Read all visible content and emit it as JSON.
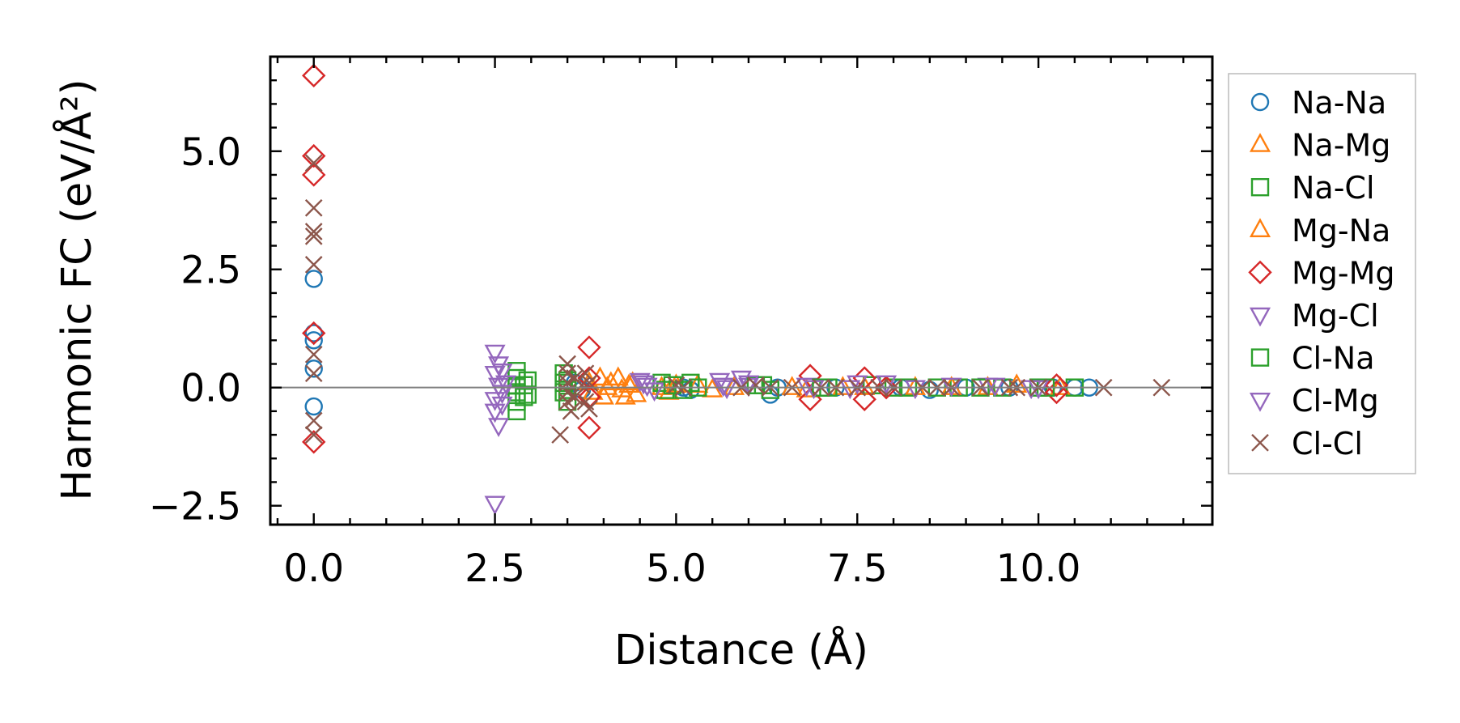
{
  "chart_data": {
    "type": "scatter",
    "title": "",
    "xlabel": "Distance (Å)",
    "ylabel": "Harmonic FC (eV/Å²)",
    "xlim": [
      -0.6,
      12.4
    ],
    "ylim": [
      -2.9,
      7.0
    ],
    "xticks": [
      0.0,
      2.5,
      5.0,
      7.5,
      10.0
    ],
    "xtick_labels": [
      "0.0",
      "2.5",
      "5.0",
      "7.5",
      "10.0"
    ],
    "yticks": [
      -2.5,
      0.0,
      2.5,
      5.0
    ],
    "ytick_labels": [
      "−2.5",
      "0.0",
      "2.5",
      "5.0"
    ],
    "zero_line": 0,
    "legend_position": "right",
    "series": [
      {
        "name": "Na-Na",
        "marker": "circle",
        "color": "#1f77b4",
        "points": [
          [
            0,
            2.3
          ],
          [
            0,
            1.15
          ],
          [
            0,
            1.0
          ],
          [
            0,
            0.4
          ],
          [
            0,
            -0.4
          ],
          [
            3.6,
            0.1
          ],
          [
            3.7,
            -0.05
          ],
          [
            5.1,
            0.0
          ],
          [
            5.2,
            -0.05
          ],
          [
            6.3,
            -0.15
          ],
          [
            6.4,
            0.0
          ],
          [
            7.2,
            0.0
          ],
          [
            8.1,
            0.0
          ],
          [
            8.5,
            -0.05
          ],
          [
            9.0,
            0.0
          ],
          [
            9.6,
            0.0
          ],
          [
            10.2,
            0.0
          ],
          [
            10.5,
            0.0
          ],
          [
            10.7,
            0.0
          ]
        ]
      },
      {
        "name": "Na-Mg",
        "marker": "triangle-up",
        "color": "#ff7f0e",
        "points": [
          [
            3.8,
            0.1
          ],
          [
            3.95,
            0.2
          ],
          [
            4.0,
            -0.2
          ],
          [
            4.1,
            0.1
          ],
          [
            4.2,
            0.2
          ],
          [
            4.3,
            -0.2
          ],
          [
            4.35,
            0.05
          ],
          [
            4.45,
            -0.15
          ],
          [
            4.8,
            0.0
          ],
          [
            4.9,
            -0.1
          ],
          [
            5.3,
            0.05
          ],
          [
            5.5,
            -0.05
          ],
          [
            6.6,
            0.0
          ],
          [
            7.3,
            0.0
          ],
          [
            8.3,
            0.0
          ],
          [
            9.3,
            0.0
          ],
          [
            10.3,
            0.0
          ]
        ]
      },
      {
        "name": "Na-Cl",
        "marker": "square",
        "color": "#2ca02c",
        "points": [
          [
            2.8,
            0.35
          ],
          [
            2.8,
            0.2
          ],
          [
            2.8,
            0.05
          ],
          [
            2.8,
            -0.1
          ],
          [
            2.8,
            -0.3
          ],
          [
            2.8,
            -0.5
          ],
          [
            2.95,
            0.15
          ],
          [
            2.95,
            -0.15
          ],
          [
            3.45,
            0.3
          ],
          [
            3.45,
            0.1
          ],
          [
            3.45,
            -0.1
          ],
          [
            3.5,
            -0.3
          ],
          [
            4.8,
            0.1
          ],
          [
            4.85,
            -0.05
          ],
          [
            5.2,
            0.1
          ],
          [
            5.3,
            0.0
          ],
          [
            6.2,
            0.05
          ],
          [
            6.3,
            -0.05
          ],
          [
            7.1,
            0.0
          ],
          [
            7.7,
            0.05
          ],
          [
            8.0,
            0.0
          ],
          [
            8.6,
            0.0
          ],
          [
            8.9,
            0.0
          ],
          [
            9.5,
            0.0
          ],
          [
            10.0,
            0.0
          ],
          [
            10.5,
            0.0
          ]
        ]
      },
      {
        "name": "Mg-Na",
        "marker": "triangle-up",
        "color": "#ff7f0e",
        "points": [
          [
            3.85,
            -0.1
          ],
          [
            4.05,
            0.0
          ],
          [
            4.25,
            -0.05
          ],
          [
            4.4,
            0.1
          ],
          [
            5.0,
            0.05
          ],
          [
            5.8,
            0.0
          ],
          [
            6.8,
            -0.05
          ],
          [
            7.6,
            0.0
          ],
          [
            8.8,
            0.0
          ],
          [
            9.7,
            0.05
          ]
        ]
      },
      {
        "name": "Mg-Mg",
        "marker": "diamond",
        "color": "#d62728",
        "points": [
          [
            0,
            6.6
          ],
          [
            0,
            4.9
          ],
          [
            0,
            4.5
          ],
          [
            0,
            1.15
          ],
          [
            0,
            -1.15
          ],
          [
            3.8,
            0.85
          ],
          [
            3.8,
            0.2
          ],
          [
            3.8,
            -0.2
          ],
          [
            3.8,
            -0.85
          ],
          [
            6.85,
            0.25
          ],
          [
            6.85,
            -0.25
          ],
          [
            7.6,
            0.2
          ],
          [
            7.6,
            -0.25
          ],
          [
            7.9,
            0.0
          ],
          [
            10.25,
            0.05
          ],
          [
            10.25,
            -0.1
          ]
        ]
      },
      {
        "name": "Mg-Cl",
        "marker": "triangle-down",
        "color": "#9467bd",
        "points": [
          [
            2.5,
            0.75
          ],
          [
            2.55,
            0.5
          ],
          [
            2.5,
            0.3
          ],
          [
            2.55,
            0.05
          ],
          [
            2.5,
            -0.25
          ],
          [
            2.5,
            -0.5
          ],
          [
            2.55,
            -0.8
          ],
          [
            2.5,
            -2.45
          ],
          [
            4.5,
            0.15
          ],
          [
            4.6,
            0.05
          ],
          [
            4.7,
            -0.05
          ],
          [
            5.6,
            0.15
          ],
          [
            5.7,
            0.0
          ],
          [
            5.9,
            0.2
          ],
          [
            6.0,
            0.05
          ],
          [
            6.8,
            0.05
          ],
          [
            7.4,
            0.0
          ],
          [
            7.9,
            0.1
          ],
          [
            8.8,
            0.05
          ],
          [
            9.3,
            0.05
          ],
          [
            9.9,
            0.0
          ]
        ]
      },
      {
        "name": "Cl-Na",
        "marker": "square",
        "color": "#2ca02c",
        "points": [
          [
            2.9,
            0.05
          ],
          [
            2.9,
            -0.2
          ],
          [
            3.5,
            0.15
          ],
          [
            3.5,
            -0.05
          ],
          [
            4.95,
            0.05
          ],
          [
            5.1,
            -0.05
          ],
          [
            6.1,
            0.05
          ],
          [
            7.0,
            0.0
          ],
          [
            8.2,
            0.0
          ],
          [
            9.2,
            0.0
          ],
          [
            10.1,
            0.0
          ]
        ]
      },
      {
        "name": "Cl-Mg",
        "marker": "triangle-down",
        "color": "#9467bd",
        "points": [
          [
            2.6,
            0.35
          ],
          [
            2.6,
            -0.35
          ],
          [
            2.65,
            0.1
          ],
          [
            2.6,
            -0.1
          ],
          [
            4.55,
            0.1
          ],
          [
            5.65,
            0.05
          ],
          [
            6.0,
            0.1
          ],
          [
            6.9,
            0.0
          ],
          [
            7.5,
            0.1
          ],
          [
            8.3,
            0.0
          ],
          [
            9.4,
            0.05
          ],
          [
            10.0,
            0.0
          ]
        ]
      },
      {
        "name": "Cl-Cl",
        "marker": "x",
        "color": "#8c564b",
        "points": [
          [
            0,
            4.75
          ],
          [
            0,
            3.8
          ],
          [
            0,
            3.3
          ],
          [
            0,
            3.2
          ],
          [
            0,
            2.6
          ],
          [
            0,
            0.7
          ],
          [
            0,
            0.3
          ],
          [
            0,
            -0.7
          ],
          [
            0,
            -1.0
          ],
          [
            3.4,
            -1.0
          ],
          [
            3.5,
            0.5
          ],
          [
            3.5,
            0.3
          ],
          [
            3.5,
            0.1
          ],
          [
            3.5,
            -0.1
          ],
          [
            3.5,
            -0.3
          ],
          [
            3.55,
            -0.5
          ],
          [
            3.6,
            0.2
          ],
          [
            3.6,
            -0.2
          ],
          [
            3.7,
            0.05
          ],
          [
            3.75,
            0.3
          ],
          [
            3.75,
            -0.3
          ],
          [
            3.8,
            -0.45
          ],
          [
            3.8,
            0.1
          ],
          [
            5.0,
            0.05
          ],
          [
            5.1,
            0.0
          ],
          [
            5.9,
            0.0
          ],
          [
            6.1,
            0.05
          ],
          [
            6.3,
            0.0
          ],
          [
            6.6,
            0.0
          ],
          [
            7.0,
            0.0
          ],
          [
            7.2,
            0.0
          ],
          [
            7.5,
            0.0
          ],
          [
            7.8,
            0.0
          ],
          [
            8.0,
            0.0
          ],
          [
            8.4,
            0.0
          ],
          [
            8.6,
            0.0
          ],
          [
            8.8,
            0.0
          ],
          [
            9.2,
            0.0
          ],
          [
            9.6,
            0.0
          ],
          [
            9.7,
            0.0
          ],
          [
            10.0,
            0.0
          ],
          [
            10.9,
            0.0
          ],
          [
            11.7,
            0.0
          ]
        ]
      }
    ]
  }
}
